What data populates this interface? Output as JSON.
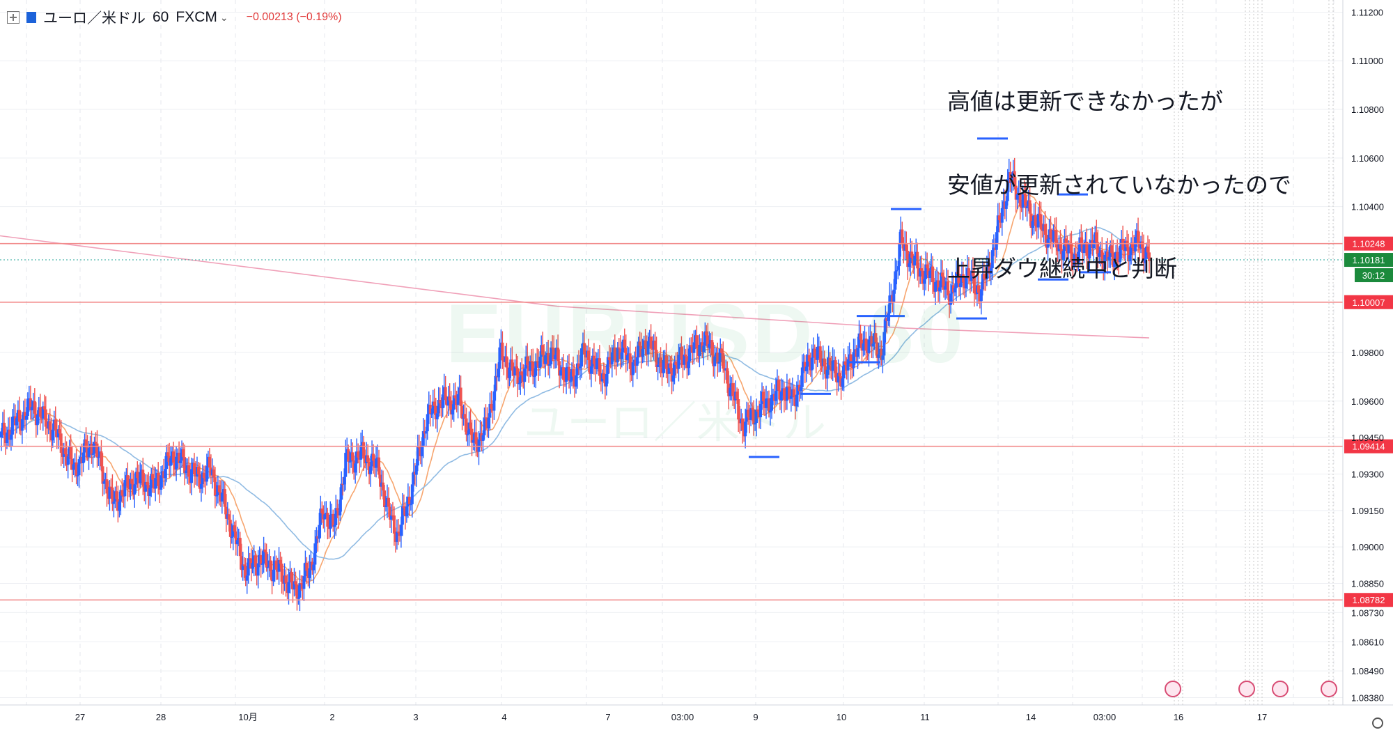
{
  "legend": {
    "symbol": "ユーロ／米ドル",
    "timeframe": "60",
    "source": "FXCM",
    "change": "−0.00213 (−0.19%)",
    "colors": {
      "up": "#2962ff",
      "down": "#ef5350",
      "ma_fast": "#f7a56e",
      "ma_mid": "#90bbe3",
      "ma_slow": "#f0a0b8",
      "hline": "#f28b8b"
    }
  },
  "annotation": {
    "lines": [
      "高値は更新できなかったが",
      "安値が更新されていなかったので",
      "上昇ダウ継続中と判断"
    ]
  },
  "watermark": {
    "main": "EURUSD, 60",
    "sub": "ユーロ／米ドル"
  },
  "chart_data": {
    "type": "candlestick",
    "ylim": [
      1.0835,
      1.1125
    ],
    "y_ticks": [
      "1.11200",
      "1.11000",
      "1.10800",
      "1.10600",
      "1.10400",
      "1.09800",
      "1.09600",
      "1.09450",
      "1.09300",
      "1.09150",
      "1.09000",
      "1.08850",
      "1.08730",
      "1.08610",
      "1.08490",
      "1.08380"
    ],
    "x_ticks": [
      "27",
      "28",
      "10月",
      "2",
      "3",
      "4",
      "7",
      "03:00",
      "9",
      "10",
      "11",
      "14",
      "03:00",
      "16",
      "17"
    ],
    "horizontal_lines": [
      {
        "value": 1.10248,
        "label": "1.10248"
      },
      {
        "value": 1.10007,
        "label": "1.10007"
      },
      {
        "value": 1.09414,
        "label": "1.09414"
      },
      {
        "value": 1.08782,
        "label": "1.08782"
      }
    ],
    "current_price": {
      "value": 1.10181,
      "label": "1.10181",
      "countdown": "30:12"
    },
    "close_path": [
      [
        0,
        1.0945
      ],
      [
        22,
        1.0958
      ],
      [
        38,
        1.0948
      ],
      [
        52,
        1.0932
      ],
      [
        66,
        1.0943
      ],
      [
        80,
        1.0918
      ],
      [
        96,
        1.0928
      ],
      [
        110,
        1.0925
      ],
      [
        124,
        1.0938
      ],
      [
        142,
        1.0928
      ],
      [
        150,
        1.0932
      ],
      [
        160,
        1.0918
      ],
      [
        176,
        1.089
      ],
      [
        186,
        1.0895
      ],
      [
        200,
        1.089
      ],
      [
        212,
        1.0882
      ],
      [
        222,
        1.089
      ],
      [
        232,
        1.0915
      ],
      [
        240,
        1.0908
      ],
      [
        248,
        1.0935
      ],
      [
        260,
        1.0938
      ],
      [
        272,
        1.0932
      ],
      [
        278,
        1.0915
      ],
      [
        286,
        1.0905
      ],
      [
        296,
        1.0925
      ],
      [
        306,
        1.0952
      ],
      [
        316,
        1.096
      ],
      [
        330,
        1.096
      ],
      [
        340,
        1.0942
      ],
      [
        350,
        1.095
      ],
      [
        360,
        1.098
      ],
      [
        370,
        1.097
      ],
      [
        384,
        1.0975
      ],
      [
        396,
        1.098
      ],
      [
        410,
        1.0968
      ],
      [
        420,
        1.098
      ],
      [
        434,
        1.097
      ],
      [
        444,
        1.0982
      ],
      [
        456,
        1.0975
      ],
      [
        464,
        1.0985
      ],
      [
        480,
        1.0972
      ],
      [
        496,
        1.098
      ],
      [
        506,
        1.0985
      ],
      [
        520,
        1.0975
      ],
      [
        534,
        1.095
      ],
      [
        548,
        1.0958
      ],
      [
        564,
        1.0965
      ],
      [
        570,
        1.096
      ],
      [
        584,
        1.098
      ],
      [
        594,
        1.0975
      ],
      [
        606,
        1.097
      ],
      [
        614,
        1.098
      ],
      [
        624,
        1.0985
      ],
      [
        634,
        1.098
      ],
      [
        648,
        1.1025
      ],
      [
        660,
        1.1015
      ],
      [
        672,
        1.101
      ],
      [
        684,
        1.1005
      ],
      [
        694,
        1.1012
      ],
      [
        706,
        1.1005
      ],
      [
        716,
        1.1025
      ],
      [
        726,
        1.1052
      ],
      [
        738,
        1.104
      ],
      [
        748,
        1.1032
      ],
      [
        760,
        1.1025
      ],
      [
        772,
        1.102
      ],
      [
        786,
        1.1025
      ],
      [
        796,
        1.1018
      ],
      [
        808,
        1.1022
      ],
      [
        820,
        1.1025
      ],
      [
        828,
        1.1018
      ]
    ],
    "horizontal_markers": [
      {
        "value": 1.0937
      },
      {
        "value": 1.0963
      },
      {
        "value": 1.0976
      },
      {
        "value": 1.0995
      },
      {
        "value": 1.0995
      },
      {
        "value": 1.1039
      },
      {
        "value": 1.0994
      },
      {
        "value": 1.1068
      },
      {
        "value": 1.101
      },
      {
        "value": 1.1045
      },
      {
        "value": 1.1013
      }
    ]
  }
}
